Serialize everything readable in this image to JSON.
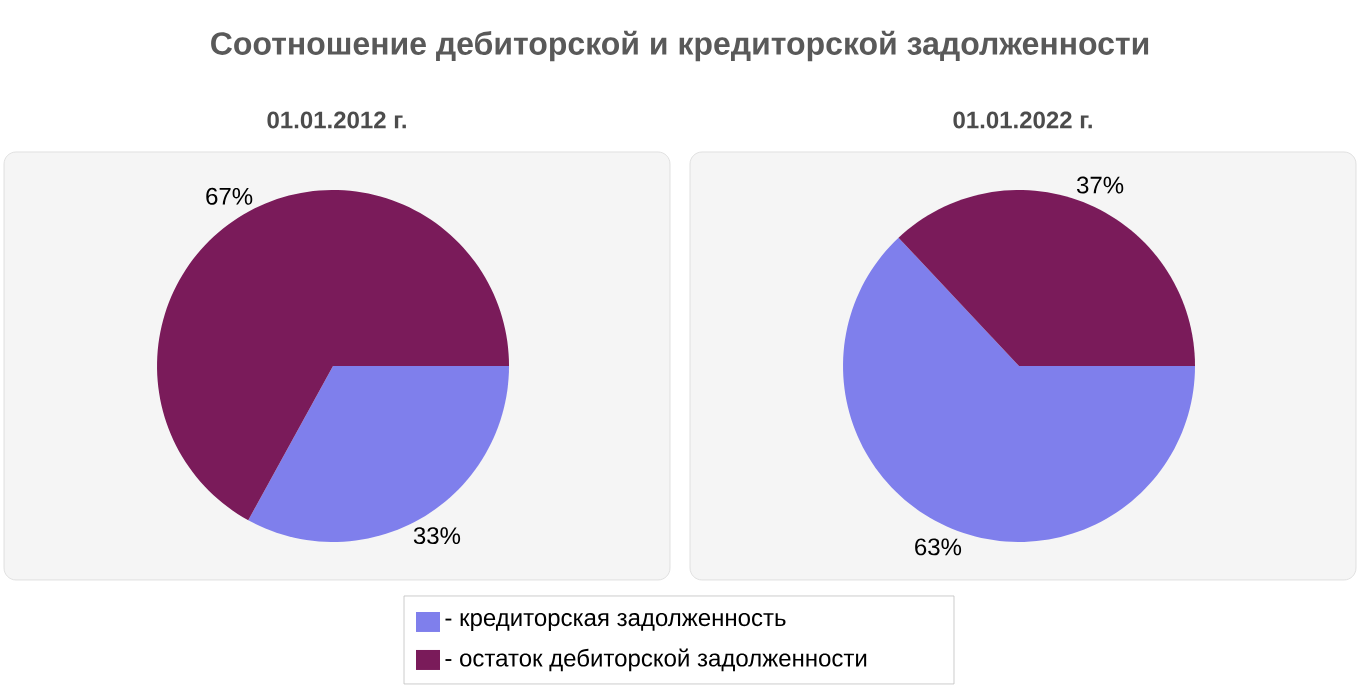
{
  "chart_data": [
    {
      "type": "pie",
      "title": "Соотношение дебиторской и кредиторской задолженности",
      "subtitle": "01.01.2012 г.",
      "categories": [
        "- кредиторская задолженность",
        "- остаток дебиторской задолженности"
      ],
      "values": [
        33,
        67
      ],
      "value_labels": [
        "33%",
        "67%"
      ],
      "colors": [
        "#7f7fec",
        "#7a1b5a"
      ],
      "legend": "bottom"
    },
    {
      "type": "pie",
      "title": "01.01.2022 г.",
      "categories": [
        null,
        null
      ],
      "values": [
        63,
        37
      ],
      "value_labels": [
        "63%",
        "37%"
      ],
      "colors": [
        "#7f7fec",
        "#7a1b5a"
      ]
    }
  ]
}
